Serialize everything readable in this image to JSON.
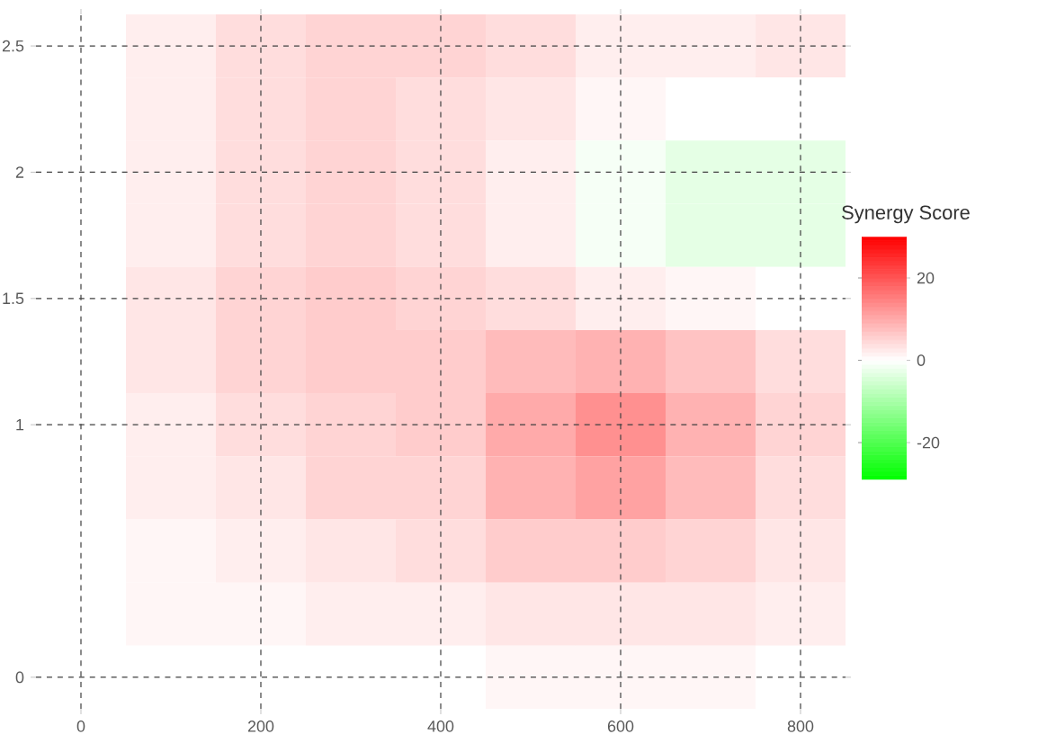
{
  "chart_data": {
    "type": "heatmap",
    "clabel": "Synergy Score",
    "categories": [
      "0",
      null,
      "200",
      null,
      "400",
      null,
      "600",
      null,
      "800"
    ],
    "y_categories": [
      "2.5",
      null,
      "2",
      null,
      "1.5",
      null,
      "1",
      null,
      null,
      null,
      "0"
    ],
    "cells": [
      [
        0,
        2,
        4,
        5,
        5,
        4,
        2,
        2,
        3
      ],
      [
        0,
        2,
        4,
        5,
        4,
        3,
        1,
        0,
        0
      ],
      [
        0,
        2,
        4,
        5,
        4,
        2,
        -1,
        -3,
        -3
      ],
      [
        0,
        2,
        4,
        5,
        4,
        2,
        -1,
        -3,
        -3
      ],
      [
        0,
        3,
        5,
        6,
        5,
        4,
        2,
        1,
        0
      ],
      [
        0,
        3,
        5,
        6,
        6,
        8,
        9,
        7,
        4
      ],
      [
        0,
        2,
        4,
        5,
        6,
        10,
        13,
        9,
        5
      ],
      [
        0,
        2,
        3,
        5,
        5,
        9,
        11,
        8,
        4
      ],
      [
        0,
        1,
        2,
        3,
        4,
        6,
        6,
        5,
        3
      ],
      [
        0,
        1,
        1,
        2,
        2,
        3,
        3,
        3,
        2
      ],
      [
        0,
        0,
        0,
        0,
        0,
        1,
        1,
        1,
        0
      ]
    ],
    "clim": [
      -29,
      30
    ],
    "cticks": [
      -20,
      0,
      20
    ],
    "grid": true
  }
}
